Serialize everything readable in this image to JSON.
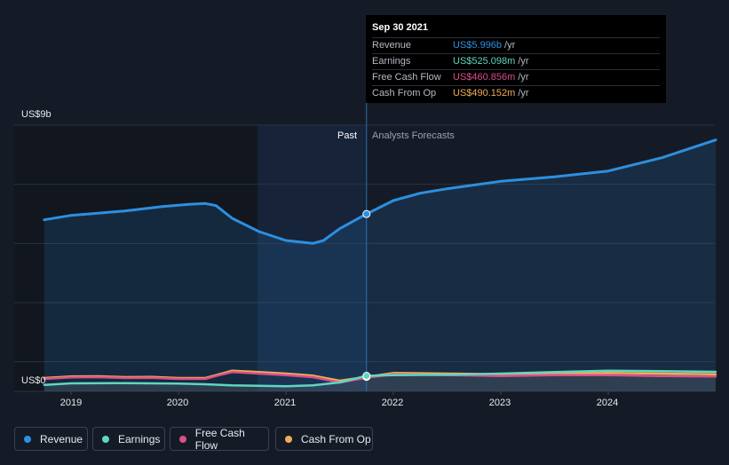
{
  "chart_data": {
    "type": "line",
    "y_top_label": "US$9b",
    "y_bottom_label": "US$0",
    "past_label": "Past",
    "forecast_label": "Analysts Forecasts",
    "x_ticks": [
      "2019",
      "2020",
      "2021",
      "2022",
      "2023",
      "2024"
    ],
    "ylim": [
      0,
      9
    ],
    "grid": true,
    "series": [
      {
        "name": "Revenue",
        "color": "#2d8fe0",
        "points": [
          [
            2018.75,
            5.8
          ],
          [
            2019.0,
            5.95
          ],
          [
            2019.5,
            6.1
          ],
          [
            2019.85,
            6.25
          ],
          [
            2020.1,
            6.32
          ],
          [
            2020.25,
            6.35
          ],
          [
            2020.35,
            6.28
          ],
          [
            2020.5,
            5.85
          ],
          [
            2020.75,
            5.4
          ],
          [
            2021.0,
            5.1
          ],
          [
            2021.25,
            5.0
          ],
          [
            2021.35,
            5.1
          ],
          [
            2021.5,
            5.5
          ],
          [
            2021.75,
            5.996
          ],
          [
            2022.0,
            6.45
          ],
          [
            2022.25,
            6.7
          ],
          [
            2022.5,
            6.85
          ],
          [
            2023.0,
            7.1
          ],
          [
            2023.5,
            7.25
          ],
          [
            2024.0,
            7.45
          ],
          [
            2024.5,
            7.9
          ],
          [
            2025.0,
            8.5
          ]
        ]
      },
      {
        "name": "Earnings",
        "color": "#5fd6bf",
        "points": [
          [
            2018.75,
            0.22
          ],
          [
            2019.0,
            0.27
          ],
          [
            2019.5,
            0.28
          ],
          [
            2020.0,
            0.26
          ],
          [
            2020.25,
            0.24
          ],
          [
            2020.5,
            0.2
          ],
          [
            2021.0,
            0.17
          ],
          [
            2021.25,
            0.2
          ],
          [
            2021.5,
            0.3
          ],
          [
            2021.75,
            0.525
          ],
          [
            2022.0,
            0.55
          ],
          [
            2022.5,
            0.56
          ],
          [
            2023.0,
            0.6
          ],
          [
            2023.5,
            0.65
          ],
          [
            2024.0,
            0.7
          ],
          [
            2024.5,
            0.68
          ],
          [
            2025.0,
            0.66
          ]
        ]
      },
      {
        "name": "Free Cash Flow",
        "color": "#d94f8a",
        "points": [
          [
            2018.75,
            0.42
          ],
          [
            2019.0,
            0.47
          ],
          [
            2019.25,
            0.48
          ],
          [
            2019.5,
            0.45
          ],
          [
            2019.75,
            0.46
          ],
          [
            2020.0,
            0.42
          ],
          [
            2020.25,
            0.42
          ],
          [
            2020.35,
            0.52
          ],
          [
            2020.5,
            0.65
          ],
          [
            2020.75,
            0.6
          ],
          [
            2021.0,
            0.55
          ],
          [
            2021.25,
            0.48
          ],
          [
            2021.5,
            0.3
          ],
          [
            2021.75,
            0.461
          ],
          [
            2022.0,
            0.58
          ],
          [
            2022.5,
            0.55
          ],
          [
            2023.0,
            0.52
          ],
          [
            2023.5,
            0.55
          ],
          [
            2024.0,
            0.55
          ],
          [
            2024.5,
            0.52
          ],
          [
            2025.0,
            0.5
          ]
        ]
      },
      {
        "name": "Cash From Op",
        "color": "#f0ad55",
        "points": [
          [
            2018.75,
            0.45
          ],
          [
            2019.0,
            0.5
          ],
          [
            2019.25,
            0.51
          ],
          [
            2019.5,
            0.48
          ],
          [
            2019.75,
            0.49
          ],
          [
            2020.0,
            0.45
          ],
          [
            2020.25,
            0.45
          ],
          [
            2020.35,
            0.55
          ],
          [
            2020.5,
            0.7
          ],
          [
            2020.75,
            0.65
          ],
          [
            2021.0,
            0.6
          ],
          [
            2021.25,
            0.53
          ],
          [
            2021.5,
            0.36
          ],
          [
            2021.75,
            0.49
          ],
          [
            2022.0,
            0.62
          ],
          [
            2022.5,
            0.6
          ],
          [
            2023.0,
            0.58
          ],
          [
            2023.5,
            0.6
          ],
          [
            2024.0,
            0.62
          ],
          [
            2024.5,
            0.6
          ],
          [
            2025.0,
            0.58
          ]
        ]
      }
    ]
  },
  "tooltip": {
    "date": "Sep 30 2021",
    "rows": [
      {
        "name": "Revenue",
        "value": "US$5.996b",
        "unit": "/yr",
        "color": "#2d8fe0"
      },
      {
        "name": "Earnings",
        "value": "US$525.098m",
        "unit": "/yr",
        "color": "#5fd6bf"
      },
      {
        "name": "Free Cash Flow",
        "value": "US$460.856m",
        "unit": "/yr",
        "color": "#d94f8a"
      },
      {
        "name": "Cash From Op",
        "value": "US$490.152m",
        "unit": "/yr",
        "color": "#f0ad55"
      }
    ]
  },
  "legend": [
    {
      "label": "Revenue",
      "color": "#2d8fe0"
    },
    {
      "label": "Earnings",
      "color": "#5fd6bf"
    },
    {
      "label": "Free Cash Flow",
      "color": "#d94f8a"
    },
    {
      "label": "Cash From Op",
      "color": "#f0ad55"
    }
  ]
}
